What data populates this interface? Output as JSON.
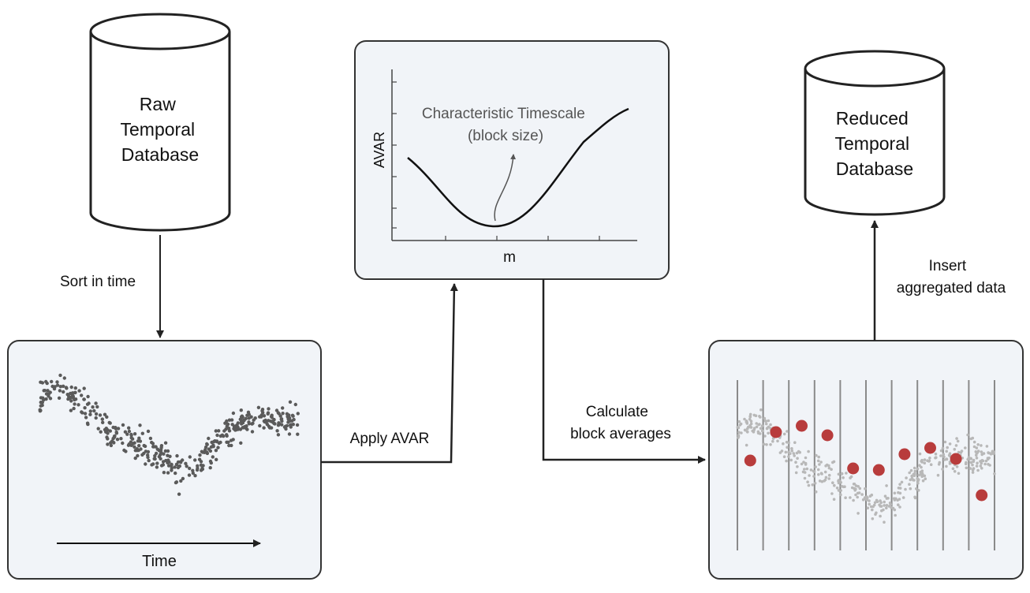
{
  "databases": {
    "raw": {
      "lines": [
        "Raw",
        "Temporal",
        "Database"
      ]
    },
    "reduced": {
      "lines": [
        "Reduced",
        "Temporal",
        "Database"
      ]
    }
  },
  "arrows": {
    "sort": [
      "Sort in time"
    ],
    "apply": [
      "Apply AVAR"
    ],
    "calculate": [
      "Calculate",
      "block averages"
    ],
    "insert": [
      "Insert",
      "aggregated data"
    ]
  },
  "avar_panel": {
    "ylabel": "AVAR",
    "xlabel": "m",
    "annotation": [
      "Characteristic Timescale",
      "(block size)"
    ]
  },
  "scatter_panel": {
    "xlabel": "Time"
  },
  "block_panel": {
    "block_averages": [
      0.58,
      0.76,
      0.8,
      0.74,
      0.53,
      0.52,
      0.62,
      0.66,
      0.59,
      0.36
    ]
  },
  "colors": {
    "panel_bg": "#f1f4f8",
    "outline": "#333333",
    "raw_point": "#5a5a5a",
    "light_point": "#b8b8b8",
    "average_point": "#b83c3c"
  }
}
